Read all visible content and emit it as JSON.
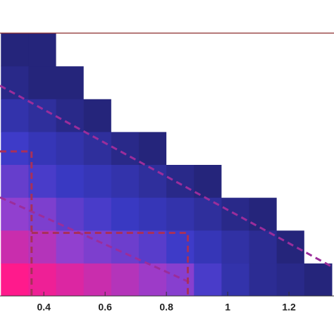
{
  "chart_data": {
    "type": "heatmap",
    "x_bins": [
      0.26,
      0.35,
      0.44,
      0.53,
      0.62,
      0.71,
      0.8,
      0.89,
      0.98,
      1.07,
      1.16,
      1.25,
      1.34
    ],
    "y_bins": [
      0,
      0.125,
      0.25,
      0.375,
      0.5,
      0.625,
      0.75,
      0.875,
      1
    ],
    "z": [
      [
        100,
        90,
        80,
        70,
        60,
        50,
        40,
        15,
        6,
        3,
        2,
        1
      ],
      [
        70,
        60,
        45,
        35,
        28,
        20,
        12,
        8,
        5,
        3,
        1,
        0
      ],
      [
        45,
        35,
        22,
        15,
        10,
        8,
        6,
        4,
        2,
        1,
        0,
        0
      ],
      [
        25,
        15,
        10,
        8,
        6,
        4,
        2,
        1,
        0,
        0,
        0,
        0
      ],
      [
        12,
        8,
        6,
        4,
        2,
        1,
        0,
        0,
        0,
        0,
        0,
        0
      ],
      [
        6,
        4,
        2,
        1,
        0,
        0,
        0,
        0,
        0,
        0,
        0,
        0
      ],
      [
        2,
        1,
        1,
        0,
        0,
        0,
        0,
        0,
        0,
        0,
        0,
        0
      ],
      [
        1,
        1,
        0,
        0,
        0,
        0,
        0,
        0,
        0,
        0,
        0,
        0
      ]
    ],
    "colormap": [
      "#ffffff",
      "#1c1c5a",
      "#3b3bc8",
      "#9040d0",
      "#ff1a8c"
    ],
    "xlim": [
      0.257,
      1.347
    ],
    "ylim": [
      0,
      1
    ],
    "xticks": [
      0.4,
      0.6,
      0.8,
      1,
      1.2
    ],
    "lines": [
      {
        "x": [
          0.257,
          1.347
        ],
        "y": [
          0.8,
          0.107
        ],
        "color": "#9b2d9b"
      },
      {
        "x": [
          0.257,
          0.88
        ],
        "y": [
          0.375,
          0.05
        ],
        "color": "#9b2d9b"
      },
      {
        "x": [
          0.257,
          0.36,
          0.36
        ],
        "y": [
          0.55,
          0.55,
          0
        ],
        "color": "#a8305a"
      },
      {
        "x": [
          0.36,
          0.87,
          0.87
        ],
        "y": [
          0.24,
          0.24,
          0
        ],
        "color": "#a8305a"
      }
    ]
  }
}
